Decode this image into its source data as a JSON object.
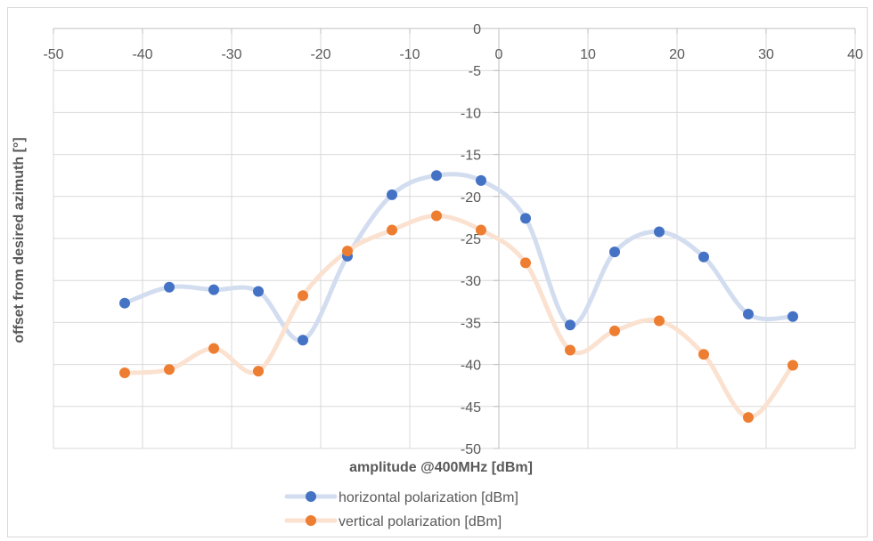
{
  "chart_data": {
    "type": "scatter",
    "xlabel": "amplitude @400MHz [dBm]",
    "ylabel": "offset from desired azimuth [°]",
    "xlim": [
      -50,
      40
    ],
    "ylim": [
      -50,
      0
    ],
    "x_ticks": [
      -50,
      -40,
      -30,
      -20,
      -10,
      0,
      10,
      20,
      30,
      40
    ],
    "y_ticks": [
      0,
      -5,
      -10,
      -15,
      -20,
      -25,
      -30,
      -35,
      -40,
      -45,
      -50
    ],
    "grid": true,
    "smoothed_lines": true,
    "legend_position": "bottom",
    "series": [
      {
        "name": "horizontal polarization [dBm]",
        "color": "#4472c4",
        "line_color": "#d3ddf0",
        "x": [
          -42,
          -37,
          -32,
          -27,
          -22,
          -17,
          -12,
          -7,
          -2,
          3,
          8,
          13,
          18,
          23,
          28,
          33
        ],
        "y": [
          -32.7,
          -30.8,
          -31.1,
          -31.3,
          -37.1,
          -27.1,
          -19.8,
          -17.5,
          -18.1,
          -22.6,
          -35.3,
          -26.6,
          -24.2,
          -27.2,
          -34.0,
          -34.3
        ]
      },
      {
        "name": "vertical polarization [dBm]",
        "color": "#ed7d31",
        "line_color": "#fbe1d0",
        "x": [
          -42,
          -37,
          -32,
          -27,
          -22,
          -17,
          -12,
          -7,
          -2,
          3,
          8,
          13,
          18,
          23,
          28,
          33
        ],
        "y": [
          -41.0,
          -40.6,
          -38.1,
          -40.8,
          -31.8,
          -26.5,
          -24.0,
          -22.3,
          -24.0,
          -27.9,
          -38.3,
          -36.0,
          -34.8,
          -38.8,
          -46.3,
          -40.1
        ]
      }
    ]
  }
}
